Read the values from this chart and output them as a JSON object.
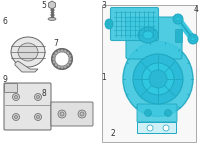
{
  "bg_color": "#ffffff",
  "part_color_blue": "#3ec8e0",
  "part_color_outline": "#666666",
  "label_color": "#333333",
  "label_fontsize": 5.5,
  "fig_width": 2.0,
  "fig_height": 1.47,
  "dpi": 100
}
